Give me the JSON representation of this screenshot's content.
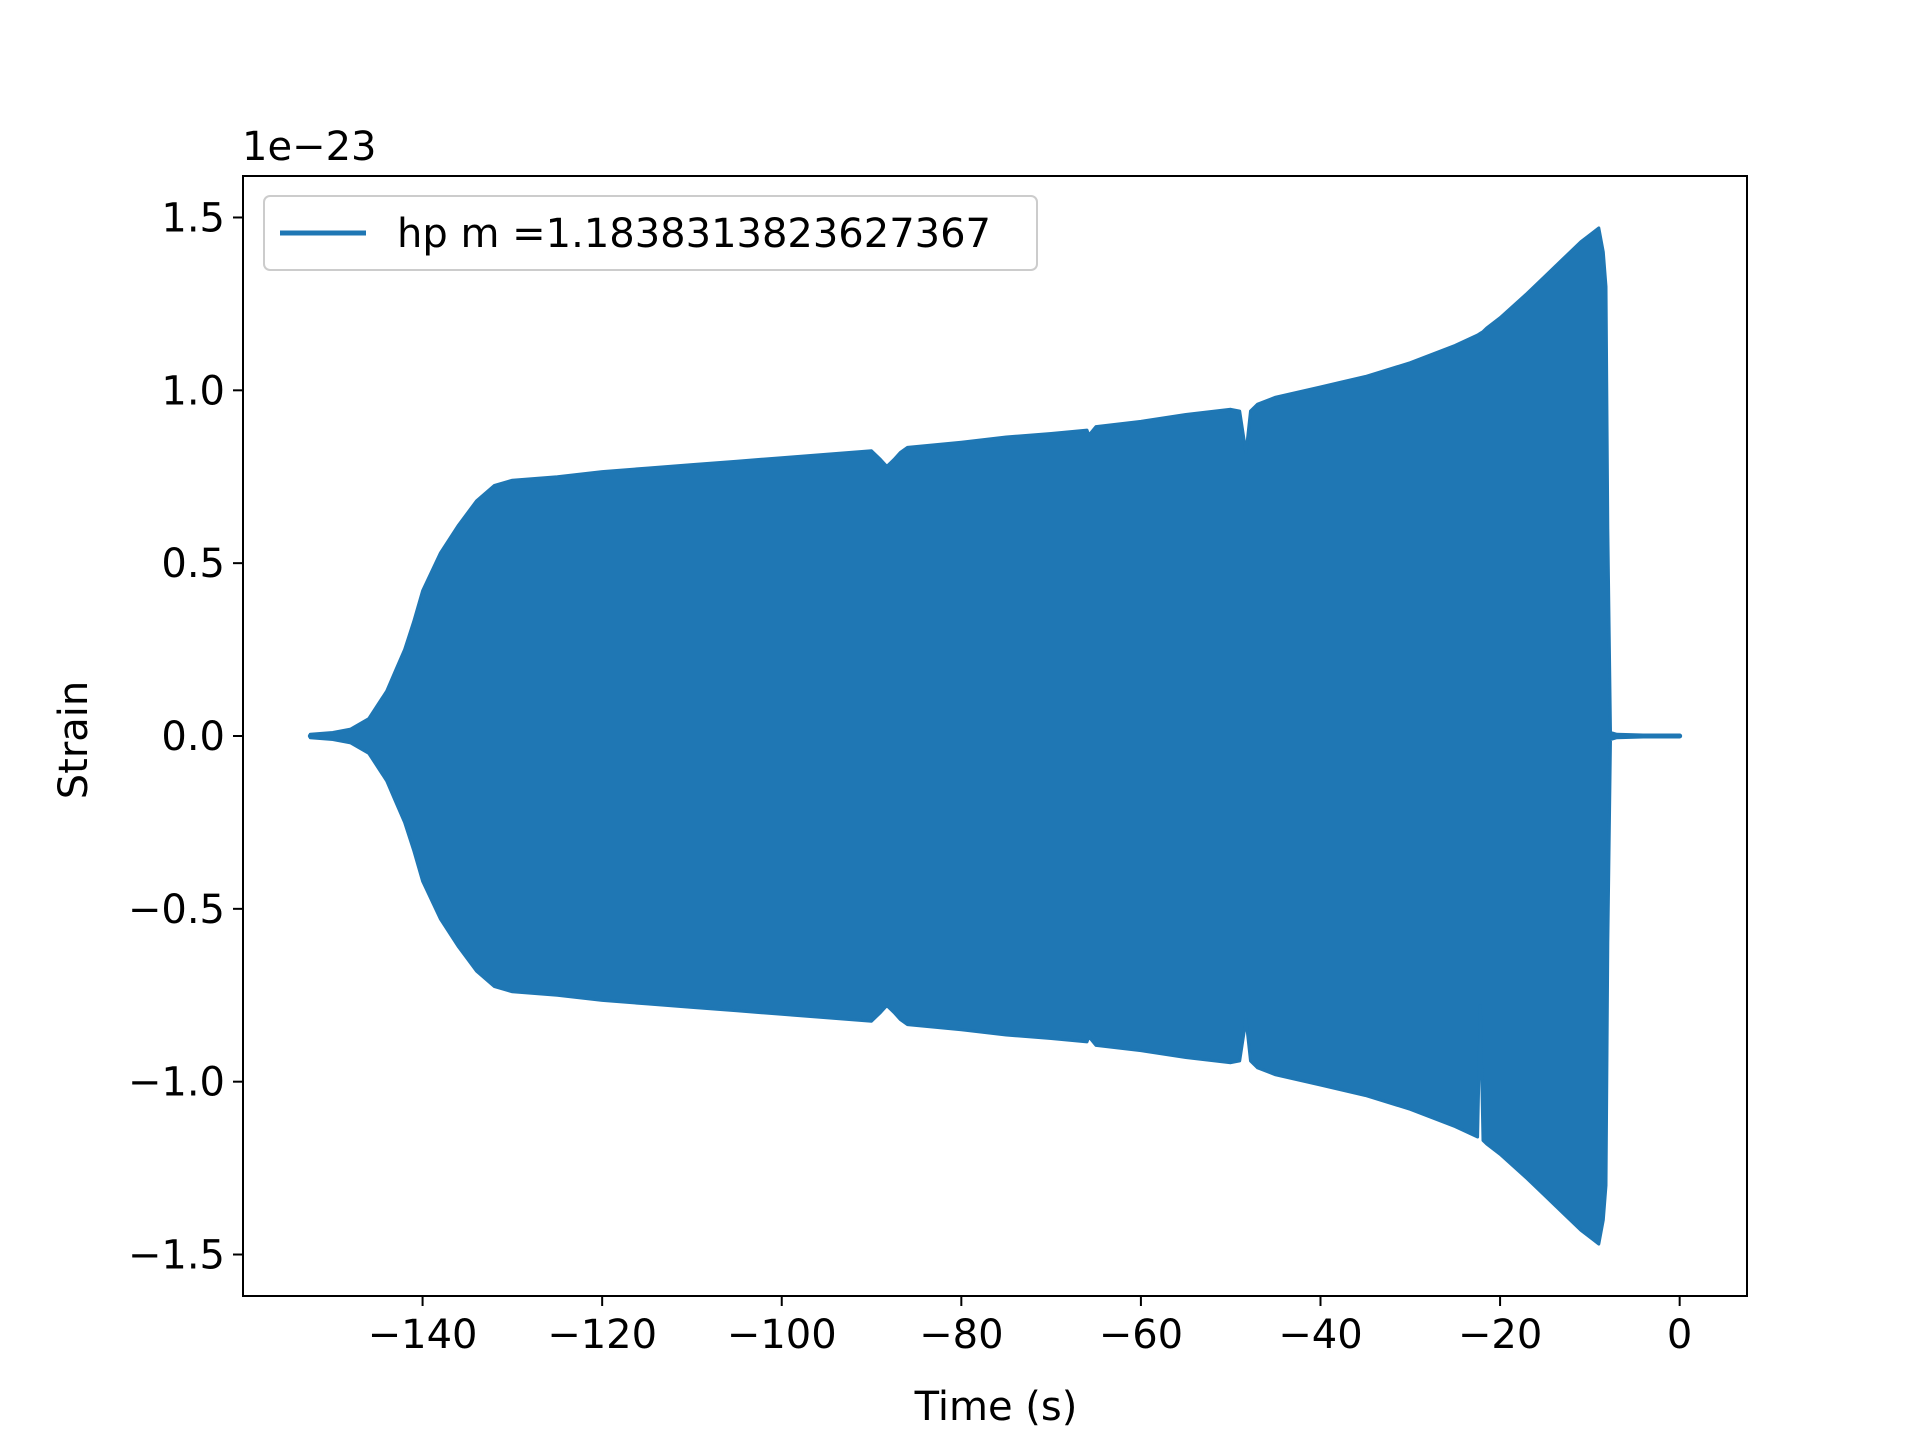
{
  "chart_data": {
    "type": "line",
    "title": "",
    "xlabel": "Time (s)",
    "ylabel": "Strain",
    "y_offset_text": "1e−23",
    "xlim": [
      -160.0,
      7.5
    ],
    "ylim": [
      -1.62,
      1.62
    ],
    "xticks": [
      -140,
      -120,
      -100,
      -80,
      -60,
      -40,
      -20,
      0
    ],
    "xtick_labels": [
      "−140",
      "−120",
      "−100",
      "−80",
      "−60",
      "−40",
      "−20",
      "0"
    ],
    "yticks": [
      1.5,
      1.0,
      0.5,
      0.0,
      -0.5,
      -1.0,
      -1.5
    ],
    "ytick_labels": [
      "1.5",
      "1.0",
      "0.5",
      "0.0",
      "−0.5",
      "−1.0",
      "−1.5"
    ],
    "grid": false,
    "legend": {
      "placement": "upper-left",
      "entries": [
        "hp m =1.1838313823627367"
      ]
    },
    "series": [
      {
        "name": "hp m =1.1838313823627367",
        "color": "#1f77b4",
        "display": "filled oscillation envelope (strain in units of 1e-23)",
        "x": [
          -152.5,
          -150,
          -148,
          -146,
          -144,
          -143,
          -142,
          -141,
          -140,
          -138,
          -136,
          -134,
          -132,
          -130,
          -125,
          -120,
          -115,
          -110,
          -105,
          -100,
          -95,
          -90,
          -89,
          -88.3,
          -87.5,
          -86.8,
          -86,
          -80,
          -75,
          -70,
          -66,
          -65.8,
          -65,
          -60,
          -55,
          -50,
          -49,
          -48.3,
          -47.8,
          -47,
          -45,
          -40,
          -35,
          -30,
          -25,
          -22.5,
          -22.2,
          -21.9,
          -21.5,
          -20,
          -17,
          -15,
          -13,
          -11,
          -10,
          -9,
          -8.5,
          -8.2,
          -8.0,
          -7.7,
          -7.0,
          0.0
        ],
        "upper": [
          0.005,
          0.01,
          0.02,
          0.05,
          0.13,
          0.19,
          0.25,
          0.33,
          0.42,
          0.53,
          0.61,
          0.68,
          0.725,
          0.74,
          0.75,
          0.765,
          0.775,
          0.785,
          0.795,
          0.805,
          0.815,
          0.825,
          0.8,
          0.78,
          0.8,
          0.82,
          0.835,
          0.85,
          0.865,
          0.875,
          0.885,
          0.87,
          0.895,
          0.91,
          0.93,
          0.945,
          0.94,
          0.82,
          0.94,
          0.96,
          0.98,
          1.01,
          1.04,
          1.08,
          1.13,
          1.16,
          1.165,
          1.17,
          1.18,
          1.21,
          1.28,
          1.33,
          1.38,
          1.43,
          1.45,
          1.47,
          1.4,
          1.3,
          0.6,
          0.01,
          0.005,
          0.0
        ],
        "lower": [
          -0.005,
          -0.01,
          -0.02,
          -0.05,
          -0.13,
          -0.19,
          -0.25,
          -0.33,
          -0.42,
          -0.53,
          -0.61,
          -0.68,
          -0.725,
          -0.74,
          -0.75,
          -0.765,
          -0.775,
          -0.785,
          -0.795,
          -0.805,
          -0.815,
          -0.825,
          -0.8,
          -0.78,
          -0.8,
          -0.82,
          -0.835,
          -0.85,
          -0.865,
          -0.875,
          -0.885,
          -0.87,
          -0.895,
          -0.91,
          -0.93,
          -0.945,
          -0.94,
          -0.82,
          -0.94,
          -0.96,
          -0.98,
          -1.01,
          -1.04,
          -1.08,
          -1.13,
          -1.16,
          -0.78,
          -1.17,
          -1.18,
          -1.21,
          -1.28,
          -1.33,
          -1.38,
          -1.43,
          -1.45,
          -1.47,
          -1.4,
          -1.3,
          -0.6,
          -0.01,
          -0.005,
          0.0
        ]
      }
    ]
  }
}
